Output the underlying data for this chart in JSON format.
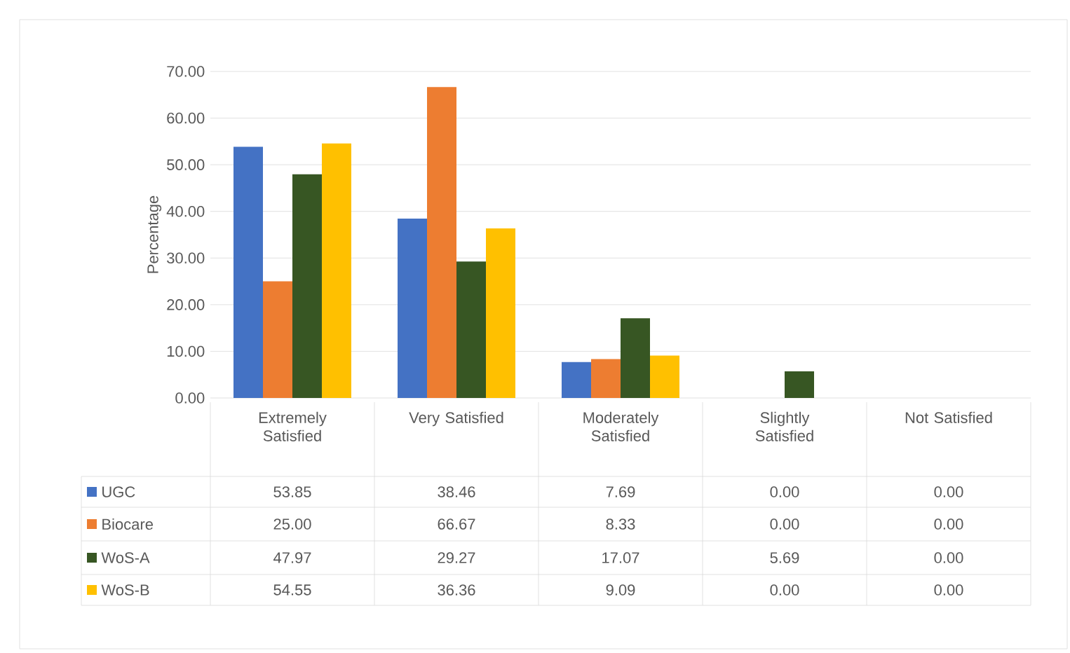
{
  "chart_data": {
    "type": "bar",
    "ylabel": "Percentage",
    "categories": [
      "Extremely Satisfied",
      "Very Satisfied",
      "Moderately Satisfied",
      "Slightly Satisfied",
      "Not Satisfied"
    ],
    "series": [
      {
        "name": "UGC",
        "color": "#4472c4",
        "values": [
          53.85,
          38.46,
          7.69,
          0.0,
          0.0
        ],
        "value_labels": [
          "53.85",
          "38.46",
          "7.69",
          "0.00",
          "0.00"
        ]
      },
      {
        "name": "Biocare",
        "color": "#ed7d31",
        "values": [
          25.0,
          66.67,
          8.33,
          0.0,
          0.0
        ],
        "value_labels": [
          "25.00",
          "66.67",
          "8.33",
          "0.00",
          "0.00"
        ]
      },
      {
        "name": "WoS-A",
        "color": "#375623",
        "values": [
          47.97,
          29.27,
          17.07,
          5.69,
          0.0
        ],
        "value_labels": [
          "47.97",
          "29.27",
          "17.07",
          "5.69",
          "0.00"
        ]
      },
      {
        "name": "WoS-B",
        "color": "#ffc000",
        "values": [
          54.55,
          36.36,
          9.09,
          0.0,
          0.0
        ],
        "value_labels": [
          "54.55",
          "36.36",
          "9.09",
          "0.00",
          "0.00"
        ]
      }
    ],
    "ylim": [
      0,
      70
    ],
    "yticks": [
      {
        "value": 0,
        "label": "0.00"
      },
      {
        "value": 10,
        "label": "10.00"
      },
      {
        "value": 20,
        "label": "20.00"
      },
      {
        "value": 30,
        "label": "30.00"
      },
      {
        "value": 40,
        "label": "40.00"
      },
      {
        "value": 50,
        "label": "50.00"
      },
      {
        "value": 60,
        "label": "60.00"
      },
      {
        "value": 70,
        "label": "70.00"
      }
    ],
    "grid": "y",
    "legend": "bottom"
  }
}
